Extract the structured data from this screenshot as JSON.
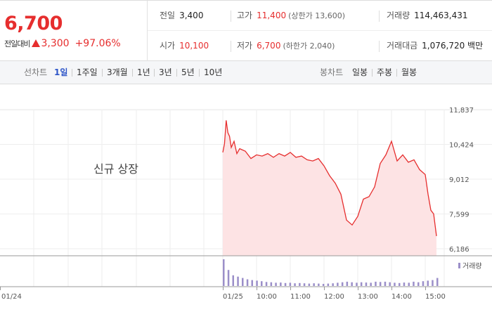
{
  "quote": {
    "price": "6,700",
    "change_label": "전일대비",
    "change_value": "3,300",
    "change_pct": "+97.06%"
  },
  "stats": {
    "prev_close": {
      "label": "전일",
      "value": "3,400"
    },
    "high": {
      "label": "고가",
      "value": "11,400",
      "sub": "(상한가 13,600)"
    },
    "volume": {
      "label": "거래량",
      "value": "114,463,431"
    },
    "open": {
      "label": "시가",
      "value": "10,100"
    },
    "low": {
      "label": "저가",
      "value": "6,700",
      "sub": "(하한가 2,040)"
    },
    "amount": {
      "label": "거래대금",
      "value": "1,076,720 백만"
    }
  },
  "toolbar": {
    "line_label": "선차트",
    "periods": [
      "1일",
      "1주일",
      "3개월",
      "1년",
      "3년",
      "5년",
      "10년"
    ],
    "active_period": "1일",
    "candle_label": "봉차트",
    "candles": [
      "일봉",
      "주봉",
      "월봉"
    ]
  },
  "colors": {
    "up": "#e62e2e",
    "accent": "#2d55c8",
    "area": "#fde3e4",
    "volume": "#9b8fc9"
  },
  "chart_data": {
    "type": "area",
    "annotation": "신규 상장",
    "y_ticks": [
      "11,837",
      "10,424",
      "9,012",
      "7,599",
      "6,186"
    ],
    "ylim": [
      6186,
      11837
    ],
    "x_ticks": [
      "01/24",
      "01/25",
      "10:00",
      "11:00",
      "12:00",
      "13:00",
      "14:00",
      "15:00"
    ],
    "volume_legend": "거래량",
    "series": [
      {
        "x": [
          "09:00",
          "09:03",
          "09:06",
          "09:09",
          "09:12",
          "09:15",
          "09:20",
          "09:25",
          "09:30",
          "09:40",
          "09:50",
          "10:00",
          "10:10",
          "10:20",
          "10:30",
          "10:40",
          "10:50",
          "11:00",
          "11:10",
          "11:20",
          "11:30",
          "11:40",
          "11:50",
          "12:00",
          "12:10",
          "12:20",
          "12:30",
          "12:40",
          "12:50",
          "13:00",
          "13:10",
          "13:20",
          "13:30",
          "13:40",
          "13:50",
          "14:00",
          "14:10",
          "14:20",
          "14:30",
          "14:40",
          "14:50",
          "15:00",
          "15:05",
          "15:10",
          "15:15",
          "15:20"
        ],
        "values": [
          10100,
          10450,
          11400,
          10900,
          10750,
          10300,
          10550,
          10050,
          10250,
          10150,
          9850,
          10000,
          9950,
          10050,
          9900,
          10050,
          9950,
          10100,
          9900,
          9950,
          9800,
          9750,
          9850,
          9550,
          9150,
          8850,
          8400,
          7350,
          7150,
          7500,
          8200,
          8300,
          8700,
          9650,
          10000,
          10550,
          9750,
          10000,
          9700,
          9800,
          9400,
          9200,
          8400,
          7750,
          7600,
          6700
        ]
      }
    ],
    "volume_values": [
      100,
      60,
      40,
      35,
      30,
      25,
      22,
      20,
      18,
      15,
      14,
      12,
      13,
      11,
      12,
      10,
      11,
      10,
      9,
      10,
      9,
      8,
      9,
      10,
      12,
      14,
      16,
      14,
      12,
      14,
      13,
      12,
      16,
      15,
      16,
      14,
      12,
      11,
      13,
      12,
      16,
      14,
      18,
      20,
      22,
      30
    ]
  }
}
